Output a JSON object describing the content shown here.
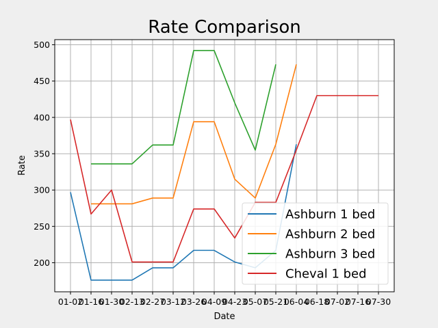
{
  "chart_data": {
    "type": "line",
    "title": "Rate Comparison",
    "xlabel": "Date",
    "ylabel": "Rate",
    "categories": [
      "01-02",
      "01-16",
      "01-30",
      "02-13",
      "02-27",
      "03-12",
      "03-26",
      "04-09",
      "04-23",
      "05-07",
      "05-21",
      "06-04",
      "06-18",
      "07-02",
      "07-16",
      "07-30"
    ],
    "ylim": [
      160,
      507
    ],
    "yticks": [
      200,
      250,
      300,
      350,
      400,
      450,
      500
    ],
    "grid": true,
    "legend_position": "lower-right",
    "series": [
      {
        "name": "Ashburn 1 bed",
        "color": "#1f77b4",
        "values": [
          297,
          176,
          176,
          176,
          193,
          193,
          217,
          217,
          201,
          193,
          217,
          363,
          null,
          null,
          null,
          null
        ]
      },
      {
        "name": "Ashburn 2 bed",
        "color": "#ff7f0e",
        "values": [
          null,
          281,
          281,
          281,
          289,
          289,
          394,
          394,
          315,
          289,
          363,
          473,
          null,
          null,
          null,
          null
        ]
      },
      {
        "name": "Ashburn 3 bed",
        "color": "#2ca02c",
        "values": [
          null,
          336,
          336,
          336,
          362,
          362,
          492,
          492,
          420,
          355,
          473,
          null,
          null,
          null,
          null,
          null
        ]
      },
      {
        "name": "Cheval 1 bed",
        "color": "#d62728",
        "values": [
          397,
          267,
          300,
          201,
          201,
          201,
          274,
          274,
          234,
          283,
          283,
          355,
          430,
          430,
          430,
          430
        ]
      }
    ]
  }
}
